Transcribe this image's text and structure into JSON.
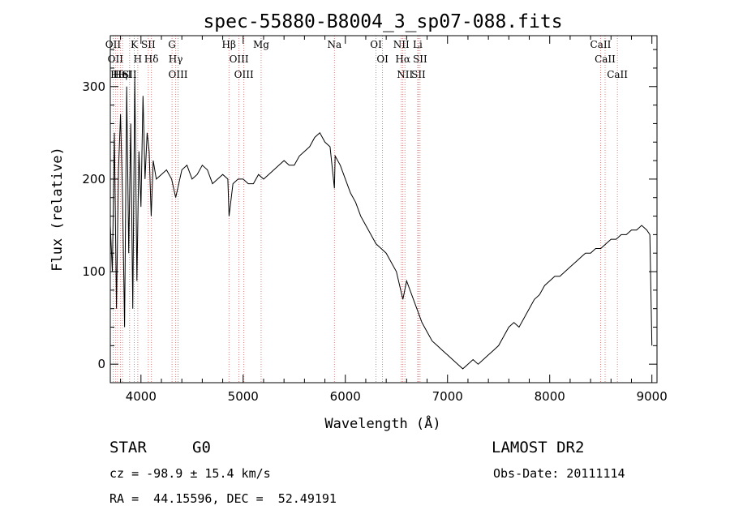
{
  "chart_data": {
    "type": "line",
    "title": "spec-55880-B8004_3_sp07-088.fits",
    "xlabel": "Wavelength (Å)",
    "ylabel": "Flux (relative)",
    "xlim": [
      3700,
      9050
    ],
    "ylim": [
      -20,
      355
    ],
    "xticks": [
      4000,
      5000,
      6000,
      7000,
      8000,
      9000
    ],
    "yticks": [
      0,
      100,
      200,
      300
    ],
    "grid": false,
    "spectrum": {
      "x": [
        3700,
        3720,
        3740,
        3760,
        3780,
        3800,
        3820,
        3840,
        3860,
        3880,
        3900,
        3920,
        3940,
        3960,
        3980,
        4000,
        4020,
        4040,
        4060,
        4080,
        4100,
        4120,
        4150,
        4200,
        4250,
        4300,
        4340,
        4400,
        4450,
        4500,
        4550,
        4600,
        4650,
        4700,
        4750,
        4800,
        4850,
        4862,
        4900,
        4950,
        5000,
        5050,
        5100,
        5150,
        5200,
        5250,
        5300,
        5350,
        5400,
        5450,
        5500,
        5550,
        5600,
        5650,
        5700,
        5750,
        5800,
        5850,
        5893,
        5900,
        5950,
        6000,
        6050,
        6100,
        6150,
        6200,
        6250,
        6300,
        6350,
        6400,
        6450,
        6500,
        6563,
        6600,
        6650,
        6700,
        6750,
        6800,
        6850,
        6900,
        6950,
        7000,
        7050,
        7100,
        7150,
        7200,
        7250,
        7300,
        7350,
        7400,
        7450,
        7500,
        7550,
        7600,
        7650,
        7700,
        7750,
        7800,
        7850,
        7900,
        7950,
        8000,
        8050,
        8100,
        8150,
        8200,
        8250,
        8300,
        8350,
        8400,
        8450,
        8500,
        8550,
        8600,
        8650,
        8700,
        8750,
        8800,
        8850,
        8900,
        8950,
        8980,
        9000
      ],
      "y": [
        150,
        100,
        250,
        60,
        210,
        270,
        180,
        40,
        300,
        120,
        260,
        60,
        310,
        90,
        230,
        170,
        290,
        200,
        250,
        230,
        160,
        220,
        200,
        205,
        210,
        200,
        180,
        210,
        215,
        200,
        205,
        215,
        210,
        195,
        200,
        205,
        200,
        160,
        195,
        200,
        200,
        195,
        195,
        205,
        200,
        205,
        210,
        215,
        220,
        215,
        215,
        225,
        230,
        235,
        245,
        250,
        240,
        235,
        190,
        225,
        215,
        200,
        185,
        175,
        160,
        150,
        140,
        130,
        125,
        120,
        110,
        100,
        70,
        90,
        75,
        60,
        45,
        35,
        25,
        20,
        15,
        10,
        5,
        0,
        -5,
        0,
        5,
        0,
        5,
        10,
        15,
        20,
        30,
        40,
        45,
        40,
        50,
        60,
        70,
        75,
        85,
        90,
        95,
        95,
        100,
        105,
        110,
        115,
        120,
        120,
        125,
        125,
        130,
        135,
        135,
        140,
        140,
        145,
        145,
        150,
        145,
        140,
        20
      ]
    },
    "line_markers": [
      {
        "wl": 3727,
        "label": "OII"
      },
      {
        "wl": 3750,
        "label": "OII"
      },
      {
        "wl": 3771,
        "label": "Hθ"
      },
      {
        "wl": 3798,
        "label": "Hη"
      },
      {
        "wl": 3820,
        "label": "HeI"
      },
      {
        "wl": 3889,
        "label": "SII"
      },
      {
        "wl": 3934,
        "label": "K"
      },
      {
        "wl": 3969,
        "label": "H"
      },
      {
        "wl": 4072,
        "label": "SII"
      },
      {
        "wl": 4102,
        "label": "Hδ"
      },
      {
        "wl": 4304,
        "label": "G"
      },
      {
        "wl": 4340,
        "label": "Hγ"
      },
      {
        "wl": 4363,
        "label": "OIII"
      },
      {
        "wl": 4861,
        "label": "Hβ"
      },
      {
        "wl": 4959,
        "label": "OIII"
      },
      {
        "wl": 5007,
        "label": "OIII"
      },
      {
        "wl": 5176,
        "label": "Mg"
      },
      {
        "wl": 5893,
        "label": "Na"
      },
      {
        "wl": 6300,
        "label": "OI"
      },
      {
        "wl": 6364,
        "label": "OI"
      },
      {
        "wl": 6548,
        "label": "NII"
      },
      {
        "wl": 6563,
        "label": "Hα"
      },
      {
        "wl": 6583,
        "label": "NII"
      },
      {
        "wl": 6708,
        "label": "Li"
      },
      {
        "wl": 6716,
        "label": "SII"
      },
      {
        "wl": 6731,
        "label": "SII"
      },
      {
        "wl": 8498,
        "label": "CaII"
      },
      {
        "wl": 8542,
        "label": "CaII"
      },
      {
        "wl": 8662,
        "label": "CaII"
      }
    ]
  },
  "info": {
    "object_class": "STAR",
    "subclass": "G0",
    "survey": "LAMOST DR2",
    "cz": "cz = -98.9 ± 15.4 km/s",
    "obs_date": "Obs-Date: 20111114",
    "coords": "RA =  44.15596, DEC =  52.49191"
  },
  "colors": {
    "line": "#000000",
    "marker": "#cc6666",
    "background": "#ffffff"
  }
}
